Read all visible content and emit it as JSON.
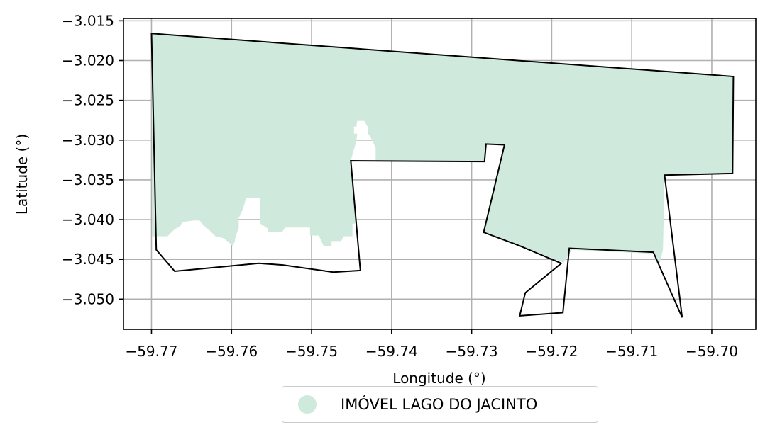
{
  "chart_data": {
    "type": "map",
    "xlabel": "Longitude (°)",
    "ylabel": "Latitude (°)",
    "xlim": [
      -59.7735,
      -59.6945
    ],
    "ylim": [
      -3.0538,
      -3.0147
    ],
    "grid": true,
    "xticks": [
      {
        "value": -59.77,
        "label": "−59.77"
      },
      {
        "value": -59.76,
        "label": "−59.76"
      },
      {
        "value": -59.75,
        "label": "−59.75"
      },
      {
        "value": -59.74,
        "label": "−59.74"
      },
      {
        "value": -59.73,
        "label": "−59.73"
      },
      {
        "value": -59.72,
        "label": "−59.72"
      },
      {
        "value": -59.71,
        "label": "−59.71"
      },
      {
        "value": -59.7,
        "label": "−59.70"
      }
    ],
    "yticks": [
      {
        "value": -3.015,
        "label": "−3.015"
      },
      {
        "value": -3.02,
        "label": "−3.020"
      },
      {
        "value": -3.025,
        "label": "−3.025"
      },
      {
        "value": -3.03,
        "label": "−3.030"
      },
      {
        "value": -3.035,
        "label": "−3.035"
      },
      {
        "value": -3.04,
        "label": "−3.040"
      },
      {
        "value": -3.045,
        "label": "−3.045"
      },
      {
        "value": -3.05,
        "label": "−3.050"
      }
    ],
    "fill_color": "#cfeadd",
    "outline_color": "#000000",
    "legend": {
      "label": "IMÓVEL LAGO DO JACINTO",
      "color": "#cfeadd",
      "placement": "below"
    },
    "boundary": [
      [
        -59.77,
        -3.0166
      ],
      [
        -59.6973,
        -3.022
      ],
      [
        -59.6974,
        -3.0342
      ],
      [
        -59.7059,
        -3.0344
      ],
      [
        -59.7037,
        -3.0523
      ],
      [
        -59.7073,
        -3.0441
      ],
      [
        -59.7178,
        -3.0436
      ],
      [
        -59.7186,
        -3.0517
      ],
      [
        -59.724,
        -3.0521
      ],
      [
        -59.7233,
        -3.0492
      ],
      [
        -59.7188,
        -3.0455
      ],
      [
        -59.724,
        -3.0433
      ],
      [
        -59.7285,
        -3.0416
      ],
      [
        -59.7259,
        -3.0306
      ],
      [
        -59.7282,
        -3.0305
      ],
      [
        -59.7284,
        -3.0327
      ],
      [
        -59.7451,
        -3.0326
      ],
      [
        -59.7439,
        -3.0464
      ],
      [
        -59.7473,
        -3.0466
      ],
      [
        -59.7536,
        -3.0457
      ],
      [
        -59.7566,
        -3.0455
      ],
      [
        -59.7671,
        -3.0465
      ],
      [
        -59.7694,
        -3.0438
      ],
      [
        -59.77,
        -3.0166
      ]
    ],
    "land_cover": [
      [
        -59.77,
        -3.0166
      ],
      [
        -59.6973,
        -3.022
      ],
      [
        -59.6974,
        -3.0342
      ],
      [
        -59.7059,
        -3.0344
      ],
      [
        -59.7061,
        -3.0438
      ],
      [
        -59.7066,
        -3.0458
      ],
      [
        -59.7072,
        -3.0443
      ],
      [
        -59.7175,
        -3.0438
      ],
      [
        -59.7185,
        -3.0454
      ],
      [
        -59.724,
        -3.0433
      ],
      [
        -59.7285,
        -3.0416
      ],
      [
        -59.7259,
        -3.0306
      ],
      [
        -59.7282,
        -3.0305
      ],
      [
        -59.7284,
        -3.0327
      ],
      [
        -59.742,
        -3.0327
      ],
      [
        -59.742,
        -3.031
      ],
      [
        -59.7423,
        -3.0303
      ],
      [
        -59.7426,
        -3.0297
      ],
      [
        -59.743,
        -3.0291
      ],
      [
        -59.743,
        -3.0283
      ],
      [
        -59.7434,
        -3.0276
      ],
      [
        -59.7443,
        -3.0276
      ],
      [
        -59.7444,
        -3.0283
      ],
      [
        -59.7447,
        -3.0283
      ],
      [
        -59.7447,
        -3.0292
      ],
      [
        -59.7443,
        -3.0292
      ],
      [
        -59.7444,
        -3.0301
      ],
      [
        -59.7451,
        -3.0326
      ],
      [
        -59.7443,
        -3.0405
      ],
      [
        -59.7449,
        -3.0405
      ],
      [
        -59.7449,
        -3.0421
      ],
      [
        -59.746,
        -3.0421
      ],
      [
        -59.7463,
        -3.0427
      ],
      [
        -59.7475,
        -3.0427
      ],
      [
        -59.7475,
        -3.0433
      ],
      [
        -59.7485,
        -3.0433
      ],
      [
        -59.7491,
        -3.042
      ],
      [
        -59.7502,
        -3.042
      ],
      [
        -59.7502,
        -3.041
      ],
      [
        -59.7533,
        -3.041
      ],
      [
        -59.7537,
        -3.0416
      ],
      [
        -59.7555,
        -3.0416
      ],
      [
        -59.7555,
        -3.0411
      ],
      [
        -59.7564,
        -3.0405
      ],
      [
        -59.7564,
        -3.0373
      ],
      [
        -59.7582,
        -3.0373
      ],
      [
        -59.7584,
        -3.0381
      ],
      [
        -59.7587,
        -3.039
      ],
      [
        -59.7591,
        -3.0398
      ],
      [
        -59.7591,
        -3.0411
      ],
      [
        -59.7595,
        -3.0421
      ],
      [
        -59.7596,
        -3.0428
      ],
      [
        -59.7599,
        -3.0433
      ],
      [
        -59.7604,
        -3.0428
      ],
      [
        -59.7611,
        -3.0423
      ],
      [
        -59.762,
        -3.0421
      ],
      [
        -59.7627,
        -3.0414
      ],
      [
        -59.7631,
        -3.0411
      ],
      [
        -59.7637,
        -3.0405
      ],
      [
        -59.764,
        -3.0401
      ],
      [
        -59.7647,
        -3.0401
      ],
      [
        -59.7661,
        -3.0403
      ],
      [
        -59.7665,
        -3.0409
      ],
      [
        -59.7671,
        -3.0412
      ],
      [
        -59.7675,
        -3.0416
      ],
      [
        -59.768,
        -3.0421
      ],
      [
        -59.7699,
        -3.0421
      ],
      [
        -59.77,
        -3.0166
      ]
    ]
  }
}
